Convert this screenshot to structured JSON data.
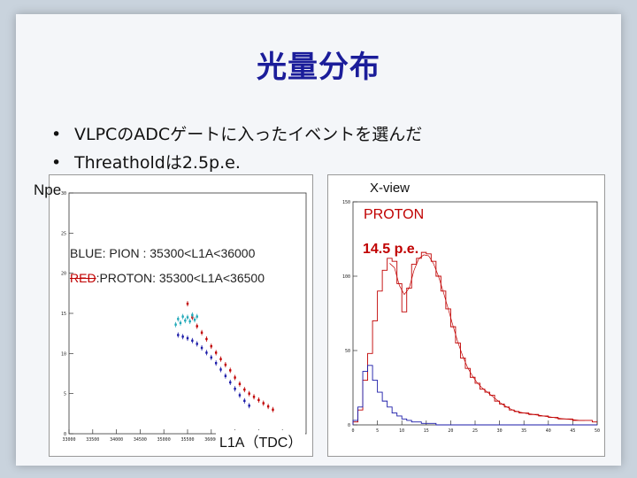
{
  "slide": {
    "title": "光量分布",
    "bullets": [
      "VLPCのADCゲートに入ったイベントを選んだ",
      "Threatholdは2.5p.e."
    ]
  },
  "annotations": {
    "npe": "Npe",
    "legend_blue": "BLUE: PION  : 35300<L1A<36000",
    "legend_red_word": "RED",
    "legend_red_rest": ":PROTON: 35300<L1A<36500",
    "l1a": "L1A（TDC）",
    "xview": "X-view",
    "proton": "PROTON",
    "pe_value": "14.5 p.e."
  },
  "colors": {
    "title": "#1b1d9a",
    "proton": "#c00000",
    "pion": "#1a1aa8",
    "cyan": "#1fa8b8",
    "fit": "#c00000"
  },
  "chart_data": [
    {
      "type": "scatter",
      "title": "",
      "xlabel": "L1A（TDC）",
      "ylabel": "Npe",
      "xlim": [
        33000,
        38000
      ],
      "ylim": [
        0,
        30
      ],
      "x_ticks": [
        33000,
        33500,
        34000,
        34500,
        35000,
        35500,
        36000,
        36500,
        37000,
        37500
      ],
      "y_ticks": [
        0,
        5,
        10,
        15,
        20,
        25,
        30
      ],
      "series": [
        {
          "name": "PROTON",
          "color": "#c00000",
          "points": [
            [
              35500,
              16.2
            ],
            [
              35600,
              14.5
            ],
            [
              35700,
              13.4
            ],
            [
              35800,
              12.6
            ],
            [
              35900,
              11.8
            ],
            [
              36000,
              10.9
            ],
            [
              36100,
              10.1
            ],
            [
              36200,
              9.3
            ],
            [
              36300,
              8.6
            ],
            [
              36400,
              7.9
            ],
            [
              36500,
              7.0
            ],
            [
              36600,
              6.2
            ],
            [
              36700,
              5.5
            ],
            [
              36800,
              5.0
            ],
            [
              36900,
              4.6
            ],
            [
              37000,
              4.2
            ],
            [
              37100,
              3.8
            ],
            [
              37200,
              3.4
            ],
            [
              37300,
              3.0
            ]
          ]
        },
        {
          "name": "PION",
          "color": "#1a1aa8",
          "points": [
            [
              35300,
              12.3
            ],
            [
              35400,
              12.1
            ],
            [
              35500,
              11.9
            ],
            [
              35600,
              11.6
            ],
            [
              35700,
              11.2
            ],
            [
              35800,
              10.7
            ],
            [
              35900,
              10.1
            ],
            [
              36000,
              9.5
            ],
            [
              36100,
              8.8
            ],
            [
              36200,
              8.0
            ],
            [
              36300,
              7.2
            ],
            [
              36400,
              6.4
            ],
            [
              36500,
              5.6
            ],
            [
              36600,
              4.8
            ],
            [
              36700,
              4.1
            ],
            [
              36800,
              3.5
            ]
          ]
        },
        {
          "name": "",
          "color": "#1fa8b8",
          "points": [
            [
              35250,
              13.6
            ],
            [
              35300,
              14.3
            ],
            [
              35350,
              13.8
            ],
            [
              35400,
              14.6
            ],
            [
              35450,
              14.1
            ],
            [
              35500,
              14.5
            ],
            [
              35550,
              14.0
            ],
            [
              35600,
              14.8
            ],
            [
              35650,
              14.2
            ],
            [
              35700,
              14.6
            ]
          ]
        }
      ]
    },
    {
      "type": "histogram",
      "title": "",
      "xlabel": "",
      "ylabel": "",
      "xlim": [
        0,
        50
      ],
      "ylim": [
        0,
        150
      ],
      "x_ticks": [
        0,
        5,
        10,
        15,
        20,
        25,
        30,
        35,
        40,
        45,
        50
      ],
      "y_ticks": [
        0,
        50,
        100,
        150
      ],
      "bin_width": 1,
      "series": [
        {
          "name": "",
          "color": "#c00000",
          "values": [
            2,
            10,
            30,
            48,
            70,
            90,
            104,
            112,
            110,
            95,
            76,
            92,
            108,
            112,
            116,
            115,
            110,
            100,
            90,
            78,
            66,
            55,
            45,
            38,
            32,
            28,
            24,
            22,
            20,
            16,
            14,
            12,
            10,
            9,
            8,
            8,
            7,
            7,
            6,
            6,
            5,
            5,
            4,
            4,
            4,
            3,
            3,
            3,
            3,
            2
          ]
        },
        {
          "name": "",
          "color": "#1a1aa8",
          "values": [
            3,
            12,
            36,
            40,
            30,
            22,
            16,
            12,
            8,
            6,
            4,
            3,
            2,
            2,
            1,
            1,
            1,
            0,
            0,
            0,
            0,
            0,
            0,
            0,
            0,
            0,
            0,
            0,
            0,
            0,
            0,
            0,
            0,
            0,
            0,
            0,
            0,
            0,
            0,
            0,
            0,
            0,
            0,
            0,
            0,
            0,
            0,
            0,
            0,
            0
          ]
        }
      ]
    }
  ]
}
